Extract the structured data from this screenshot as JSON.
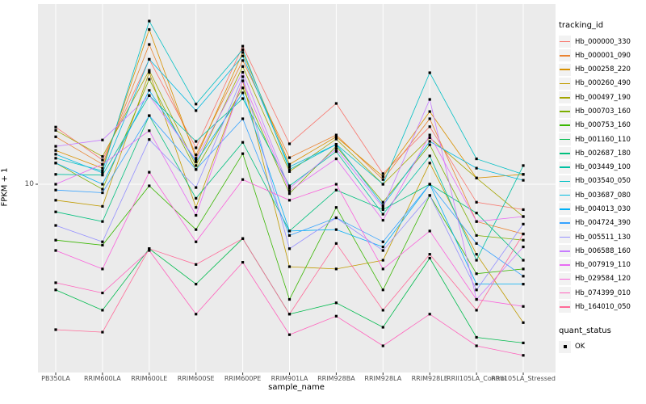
{
  "figure": {
    "y_axis": {
      "title": "FPKM + 1",
      "tick_label": "10"
    },
    "x_axis": {
      "title": "sample_name"
    },
    "legend_title": "tracking_id",
    "quant_legend": {
      "title": "quant_status",
      "item": "OK"
    },
    "colors": {
      "panel_background": "#EBEBEB",
      "gridline": "#FFFFFF",
      "axis_text": "#4D4D4D",
      "point": "#000000",
      "tick_mark": "#333333"
    }
  },
  "chart_data": {
    "type": "line",
    "title": "",
    "xlabel": "sample_name",
    "ylabel": "FPKM + 1",
    "y_scale": "log10",
    "y_ticks": [
      10
    ],
    "ylim_approx": [
      1.1,
      90
    ],
    "grid": "major",
    "legend_position": "right",
    "point_shape": "filled-square",
    "quant_status_legend": {
      "title": "quant_status",
      "values": [
        "OK"
      ]
    },
    "categories": [
      "PB350LA",
      "RRIM600LA",
      "RRIM600LE",
      "RRIM600SE",
      "RRIM600PE",
      "RRIM901LA",
      "RRIM928BA",
      "RRIM928LA",
      "RRIM928LE",
      "RRII105LA_Control",
      "RRII105LA_Stressed"
    ],
    "series": [
      {
        "name": "Hb_000000_330",
        "color": "#F8766D",
        "values": [
          20.3,
          13.5,
          47,
          15.7,
          55.3,
          16.5,
          27.2,
          11.4,
          20.4,
          8.0,
          7.3
        ]
      },
      {
        "name": "Hb_000001_090",
        "color": "#EA8331",
        "values": [
          18.0,
          12.8,
          56.5,
          14.4,
          46.3,
          13.9,
          18.4,
          10.6,
          22.5,
          6.3,
          5.4
        ]
      },
      {
        "name": "Hb_000258_220",
        "color": "#D89000",
        "values": [
          15.2,
          12.2,
          68,
          13.8,
          51.2,
          12.8,
          18.0,
          11.0,
          24.6,
          10.8,
          11.3
        ]
      },
      {
        "name": "Hb_000260_490",
        "color": "#C09B00",
        "values": [
          8.2,
          7.6,
          40,
          7.5,
          36,
          3.6,
          3.5,
          3.9,
          13.0,
          4.2,
          1.8
        ]
      },
      {
        "name": "Hb_000497_190",
        "color": "#A3A500",
        "values": [
          19.5,
          14.1,
          41,
          12.6,
          43,
          11.7,
          17.5,
          10.0,
          17.8,
          10.8,
          6.7
        ]
      },
      {
        "name": "Hb_000703_160",
        "color": "#7CAE00",
        "values": [
          13.0,
          9.4,
          36.7,
          12.0,
          33,
          8.9,
          16.0,
          8.0,
          16.3,
          5.3,
          5.0
        ]
      },
      {
        "name": "Hb_000753_160",
        "color": "#39B600",
        "values": [
          5.0,
          4.7,
          9.8,
          5.7,
          14.6,
          2.4,
          7.5,
          2.7,
          8.7,
          3.3,
          3.5
        ]
      },
      {
        "name": "Hb_001160_110",
        "color": "#00BB4E",
        "values": [
          2.7,
          2.1,
          4.5,
          2.9,
          5.1,
          2.0,
          2.3,
          1.7,
          4.0,
          1.5,
          1.4
        ]
      },
      {
        "name": "Hb_002687_180",
        "color": "#00BF7D",
        "values": [
          7.1,
          6.3,
          23.4,
          8.4,
          16.8,
          5.6,
          9.3,
          7.3,
          10.0,
          7.0,
          3.9
        ]
      },
      {
        "name": "Hb_003449_100",
        "color": "#00C1A3",
        "values": [
          11.3,
          11.2,
          30,
          17.0,
          28.9,
          9.8,
          15.0,
          6.9,
          14.2,
          3.9,
          12.6
        ]
      },
      {
        "name": "Hb_003540_050",
        "color": "#00BFC4",
        "values": [
          13.8,
          11.8,
          75.5,
          27,
          53,
          12.0,
          16.4,
          10.0,
          39.8,
          13.7,
          11.3
        ]
      },
      {
        "name": "Hb_003687_080",
        "color": "#00BAE0",
        "values": [
          14.5,
          11.5,
          47,
          24.9,
          49,
          12.4,
          16.4,
          7.7,
          17.0,
          12.2,
          10.5
        ]
      },
      {
        "name": "Hb_004013_030",
        "color": "#00B0F6",
        "values": [
          13.0,
          10.0,
          32,
          13.2,
          31,
          5.6,
          5.7,
          4.6,
          10.0,
          2.9,
          2.9
        ]
      },
      {
        "name": "Hb_004724_390",
        "color": "#35A2FF",
        "values": [
          9.3,
          9.0,
          23.4,
          12.0,
          22.5,
          5.3,
          6.6,
          4.9,
          10.0,
          4.8,
          3.2
        ]
      },
      {
        "name": "Hb_005511_130",
        "color": "#9590FF",
        "values": [
          6.0,
          4.9,
          17.4,
          9.6,
          37.9,
          4.5,
          6.6,
          4.4,
          8.7,
          2.7,
          6.1
        ]
      },
      {
        "name": "Hb_006588_160",
        "color": "#C77CFF",
        "values": [
          16.0,
          17.3,
          30,
          13.5,
          40,
          9.5,
          15.5,
          7.5,
          28.6,
          2.4,
          4.6
        ]
      },
      {
        "name": "Hb_007919_110",
        "color": "#E76BF3",
        "values": [
          10.0,
          12.8,
          19.4,
          6.8,
          36,
          9.2,
          13.7,
          6.4,
          18.4,
          6.3,
          6.7
        ]
      },
      {
        "name": "Hb_029584_120",
        "color": "#FA62DB",
        "values": [
          4.4,
          3.5,
          11.6,
          4.9,
          10.6,
          8.2,
          10.0,
          3.5,
          5.6,
          2.4,
          2.2
        ]
      },
      {
        "name": "Hb_074399_010",
        "color": "#FF62BC",
        "values": [
          2.95,
          2.6,
          4.4,
          2.0,
          3.8,
          1.55,
          1.95,
          1.35,
          2.0,
          1.35,
          1.2
        ]
      },
      {
        "name": "Hb_164010_050",
        "color": "#FF6A98",
        "values": [
          1.65,
          1.6,
          4.5,
          3.7,
          5.1,
          2.0,
          4.8,
          2.1,
          4.2,
          2.1,
          5.4
        ]
      }
    ]
  }
}
